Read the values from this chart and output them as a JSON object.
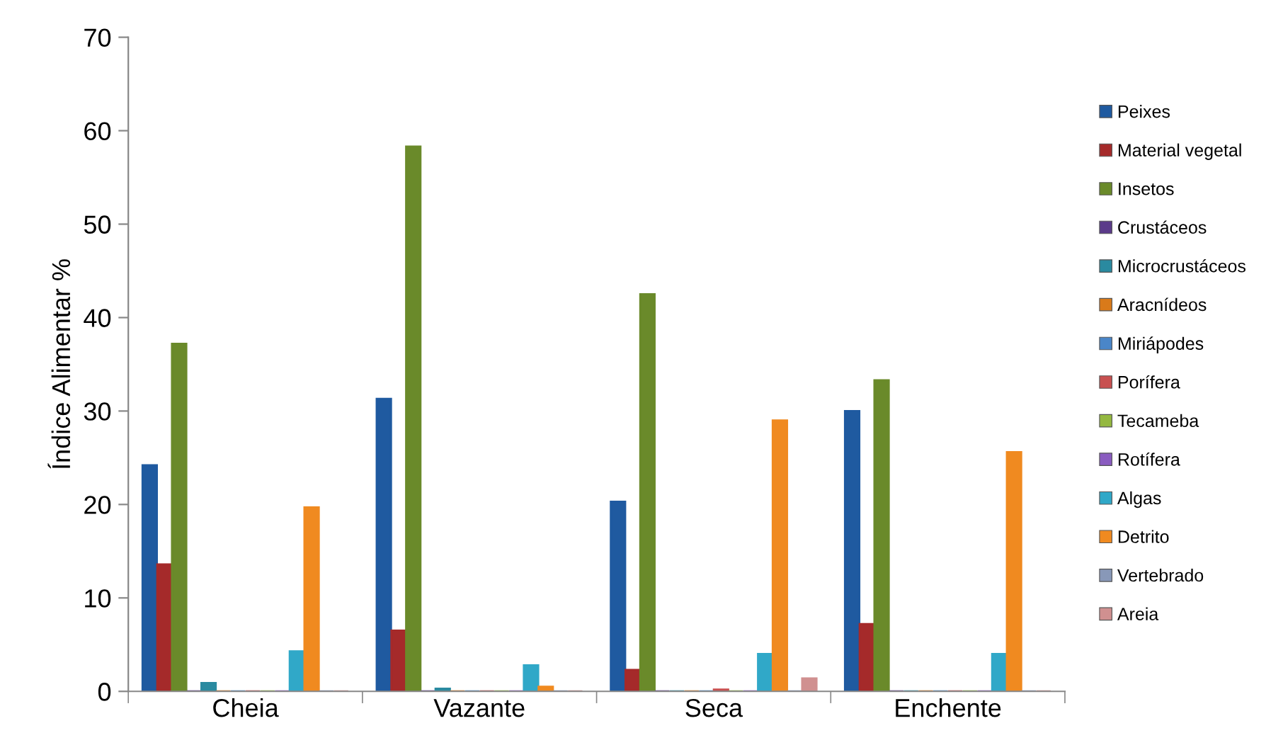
{
  "chart_data": {
    "type": "bar",
    "ylabel": "Índice Alimentar %",
    "categories": [
      "Cheia",
      "Vazante",
      "Seca",
      "Enchente"
    ],
    "ylim": [
      0,
      70
    ],
    "yticks": [
      0,
      10,
      20,
      30,
      40,
      50,
      60,
      70
    ],
    "grid": false,
    "legend": "right",
    "series": [
      {
        "name": "Peixes",
        "color": "#1f5aa0",
        "values": [
          24.2,
          31.3,
          20.3,
          30.0
        ]
      },
      {
        "name": "Material vegetal",
        "color": "#a52a2a",
        "values": [
          13.6,
          6.5,
          2.3,
          7.2
        ]
      },
      {
        "name": "Insetos",
        "color": "#6a8a2a",
        "values": [
          37.2,
          58.3,
          42.5,
          33.3
        ]
      },
      {
        "name": "Crustáceos",
        "color": "#5b3b8a",
        "values": [
          0,
          0,
          0,
          0
        ]
      },
      {
        "name": "Microcrustáceos",
        "color": "#2a8aa0",
        "values": [
          0.9,
          0.3,
          0,
          0
        ]
      },
      {
        "name": "Aracnídeos",
        "color": "#d97a1a",
        "values": [
          0,
          0,
          0,
          0
        ]
      },
      {
        "name": "Miriápodes",
        "color": "#4a86c8",
        "values": [
          0,
          0,
          0,
          0
        ]
      },
      {
        "name": "Porífera",
        "color": "#c85050",
        "values": [
          0,
          0,
          0.2,
          0
        ]
      },
      {
        "name": "Tecameba",
        "color": "#94b840",
        "values": [
          0,
          0,
          0,
          0
        ]
      },
      {
        "name": "Rotífera",
        "color": "#8a5cc0",
        "values": [
          0,
          0,
          0,
          0
        ]
      },
      {
        "name": "Algas",
        "color": "#30a8c8",
        "values": [
          4.3,
          2.8,
          4.0,
          4.0
        ]
      },
      {
        "name": "Detrito",
        "color": "#f08a20",
        "values": [
          19.7,
          0.5,
          29.0,
          25.6
        ]
      },
      {
        "name": "Vertebrado",
        "color": "#8898b8",
        "values": [
          0,
          0,
          0,
          0
        ]
      },
      {
        "name": "Areia",
        "color": "#d09090",
        "values": [
          0,
          0,
          1.4,
          0
        ]
      }
    ]
  }
}
